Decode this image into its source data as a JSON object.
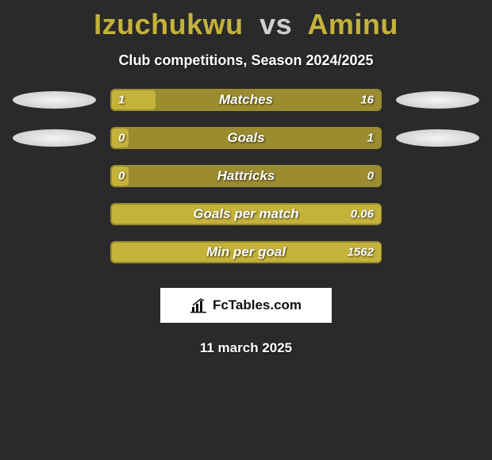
{
  "title": {
    "player1": "Izuchukwu",
    "vs": "vs",
    "player2": "Aminu",
    "p1_color": "#c4b23a",
    "p2_color": "#c4b23a"
  },
  "subtitle": "Club competitions, Season 2024/2025",
  "stats": [
    {
      "label": "Matches",
      "left_val": "1",
      "right_val": "16",
      "left_pct": 16,
      "right_pct": 0,
      "show_ellipses": true
    },
    {
      "label": "Goals",
      "left_val": "0",
      "right_val": "1",
      "left_pct": 6,
      "right_pct": 0,
      "show_ellipses": true
    },
    {
      "label": "Hattricks",
      "left_val": "0",
      "right_val": "0",
      "left_pct": 6,
      "right_pct": 0,
      "show_ellipses": false
    },
    {
      "label": "Goals per match",
      "left_val": "",
      "right_val": "0.06",
      "left_pct": 99,
      "right_pct": 0,
      "show_ellipses": false
    },
    {
      "label": "Min per goal",
      "left_val": "",
      "right_val": "1562",
      "left_pct": 99,
      "right_pct": 0,
      "show_ellipses": false
    }
  ],
  "bar_colors": {
    "bg": "#9a8c2f",
    "fill": "#c4b23a"
  },
  "logo_text": "FcTables.com",
  "date": "11 march 2025",
  "background_color": "#2a2a2a"
}
